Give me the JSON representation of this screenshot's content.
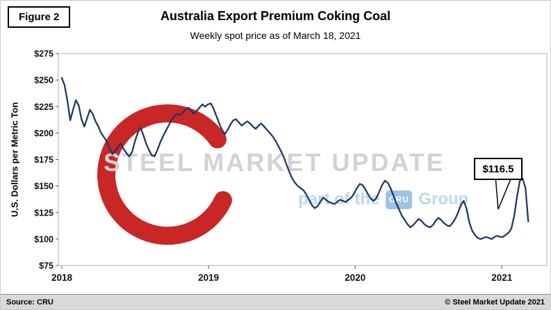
{
  "figure_label": "Figure 2",
  "chart_data": {
    "type": "line",
    "title": "Australia Export Premium Coking Coal",
    "subtitle": "Weekly spot price as of March 18, 2021",
    "ylabel": "U.S. Dollars per Metric Ton",
    "xlabel": "",
    "ylim": [
      75,
      275
    ],
    "grid": false,
    "legend": "none",
    "line_color": "#1F3864",
    "series_name": "Weekly spot price (U.S. dollars per metric ton)",
    "y_ticks": [
      {
        "label": "$75",
        "value": 75
      },
      {
        "label": "$100",
        "value": 100
      },
      {
        "label": "$125",
        "value": 125
      },
      {
        "label": "$150",
        "value": 150
      },
      {
        "label": "$175",
        "value": 175
      },
      {
        "label": "$200",
        "value": 200
      },
      {
        "label": "$225",
        "value": 225
      },
      {
        "label": "$250",
        "value": 250
      },
      {
        "label": "$275",
        "value": 275
      }
    ],
    "x_ticks": [
      {
        "label": "2018",
        "week": 0
      },
      {
        "label": "2019",
        "week": 52.2
      },
      {
        "label": "2020",
        "week": 104.4
      },
      {
        "label": "2021",
        "week": 156.6
      }
    ],
    "x_unit": "weeks from January 2018 through March 18, 2021",
    "values": [
      252,
      245,
      230,
      212,
      222,
      231,
      226,
      213,
      206,
      214,
      222,
      218,
      211,
      206,
      200,
      196,
      192,
      186,
      180,
      183,
      187,
      190,
      185,
      181,
      178,
      182,
      192,
      200,
      205,
      198,
      190,
      184,
      179,
      178,
      184,
      191,
      197,
      202,
      207,
      212,
      216,
      218,
      217,
      219,
      222,
      224,
      221,
      218,
      221,
      224,
      227,
      225,
      227,
      228,
      223,
      216,
      209,
      203,
      199,
      203,
      208,
      212,
      213,
      210,
      207,
      209,
      211,
      209,
      206,
      204,
      207,
      209,
      206,
      203,
      200,
      197,
      193,
      188,
      183,
      177,
      170,
      163,
      157,
      153,
      150,
      148,
      146,
      142,
      137,
      132,
      129,
      131,
      135,
      139,
      137,
      135,
      134,
      133,
      135,
      137,
      136,
      135,
      137,
      139,
      143,
      148,
      152,
      151,
      147,
      142,
      138,
      136,
      139,
      145,
      151,
      155,
      153,
      148,
      141,
      134,
      128,
      122,
      118,
      114,
      111,
      113,
      116,
      119,
      117,
      114,
      112,
      111,
      113,
      117,
      120,
      118,
      115,
      113,
      112,
      115,
      119,
      125,
      132,
      136,
      129,
      116,
      108,
      104,
      101,
      100,
      101,
      102,
      101,
      100,
      102,
      103,
      102,
      102,
      104,
      106,
      110,
      122,
      140,
      155,
      157,
      148,
      116.5
    ],
    "last_value": 116.5,
    "annotation": {
      "label": "$116.5",
      "value": 116.5
    }
  },
  "watermark": {
    "text": "STEEL MARKET UPDATE",
    "subtext_pre": "part of the",
    "logo_text": "CRU",
    "subtext_post": "Group",
    "red": "#C00000",
    "gray": "#D2D2D2",
    "blue": "#BDD7EE"
  },
  "footer": {
    "source": "Source: CRU",
    "copyright": "© Steel Market Update 2021"
  }
}
